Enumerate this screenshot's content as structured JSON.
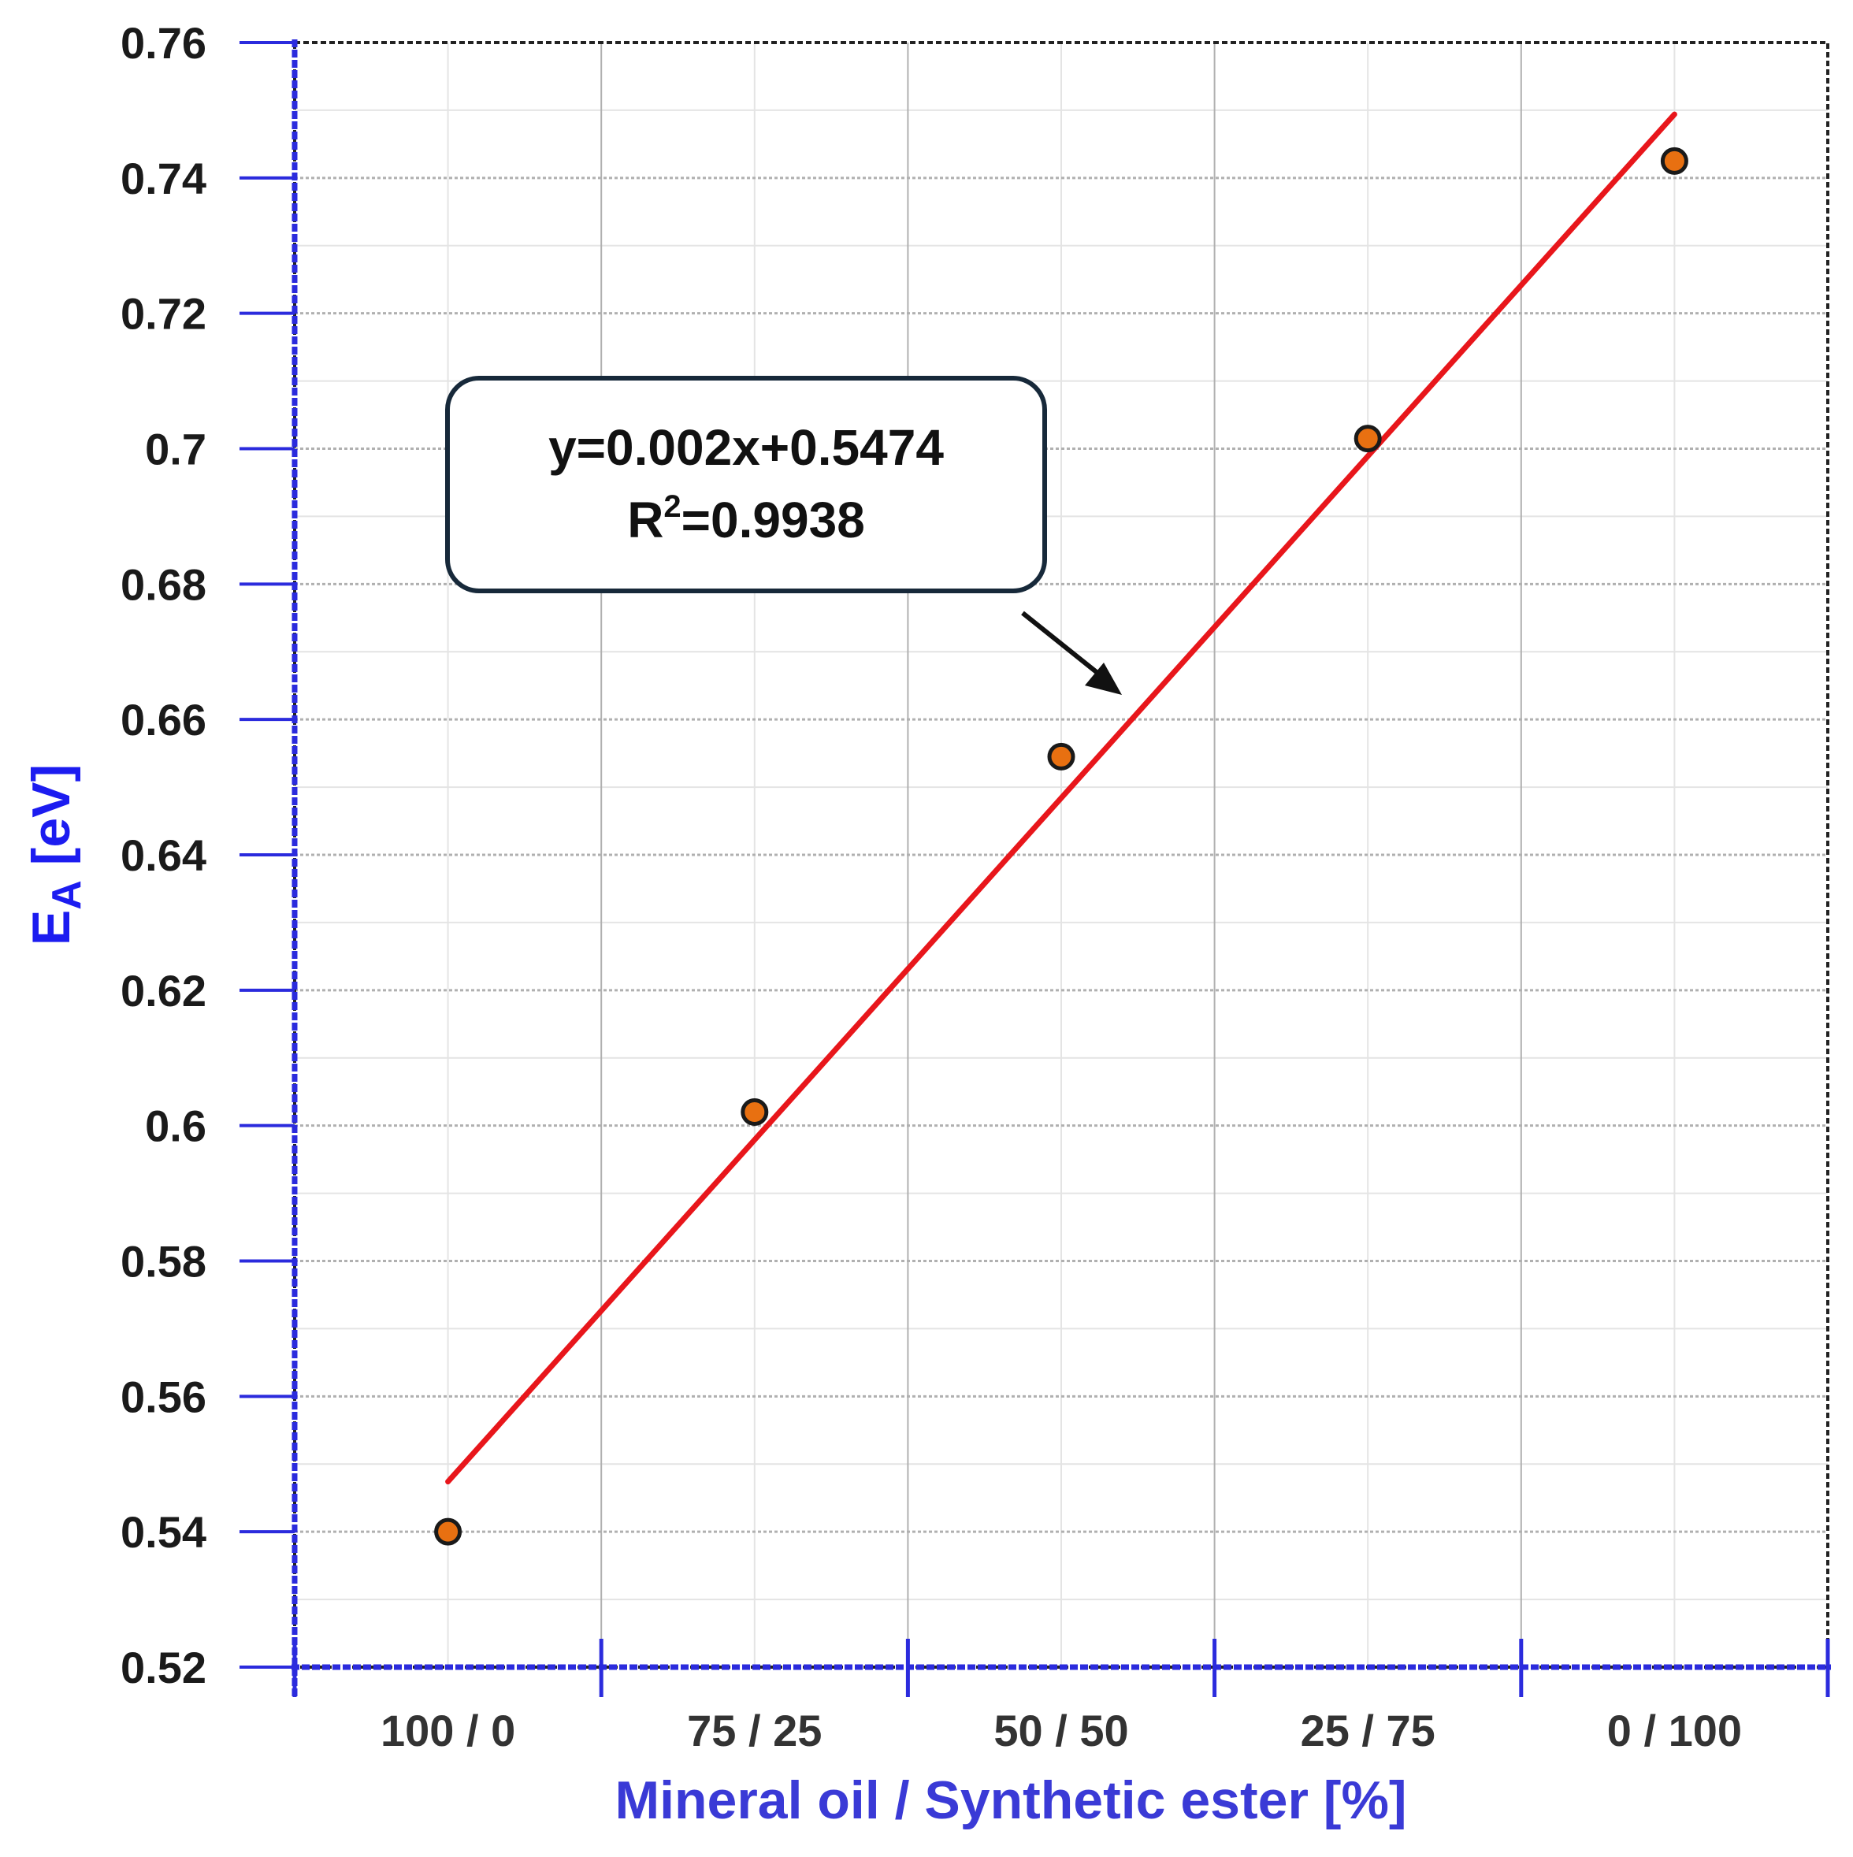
{
  "chart_data": {
    "type": "scatter",
    "title": "",
    "xlabel": "Mineral oil / Synthetic ester [%]",
    "ylabel": {
      "main": "E",
      "sub": "A",
      "unit": " [eV]"
    },
    "categories": [
      "100 / 0",
      "75 / 25",
      "50 / 50",
      "25 / 75",
      "0 / 100"
    ],
    "ylim": [
      0.52,
      0.76
    ],
    "yticks": [
      "0.52",
      "0.54",
      "0.56",
      "0.58",
      "0.6",
      "0.62",
      "0.64",
      "0.66",
      "0.68",
      "0.7",
      "0.72",
      "0.74",
      "0.76"
    ],
    "grid": true,
    "series": [
      {
        "values": [
          0.54,
          0.602,
          0.6545,
          0.7015,
          0.7425
        ]
      }
    ],
    "fit": {
      "y_start": 0.5474,
      "y_end": 0.7494,
      "equation": "y=0.002x+0.5474",
      "r2_prefix": "R",
      "r2_sup": "2",
      "r2_value": "=0.9938"
    },
    "colors": {
      "axis": "#2b2bdd",
      "axis_title": "#3a3ad6",
      "marker_fill": "#e87011",
      "fit_line": "#e8161b",
      "grid_major": "#b0b0b0",
      "grid_minor": "#e4e4e4"
    }
  }
}
